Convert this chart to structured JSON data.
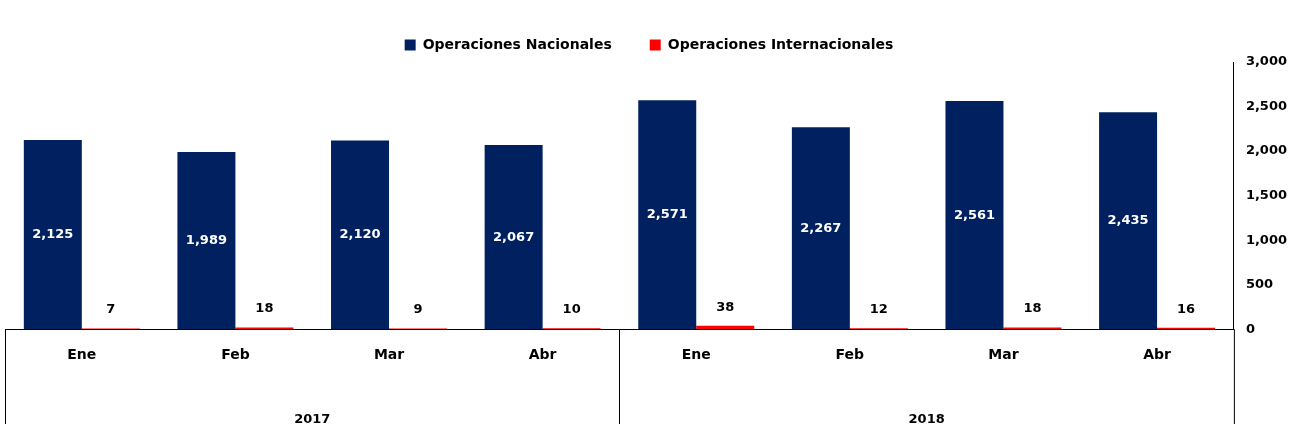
{
  "chart_data": {
    "type": "bar",
    "categories": [
      "Ene",
      "Feb",
      "Mar",
      "Abr",
      "Ene",
      "Feb",
      "Mar",
      "Abr"
    ],
    "series": [
      {
        "name": "Operaciones Nacionales",
        "color": "#002060",
        "values": [
          2125,
          1989,
          2120,
          2067,
          2571,
          2267,
          2561,
          2435
        ],
        "value_labels": [
          "2,125",
          "1,989",
          "2,120",
          "2,067",
          "2,571",
          "2,267",
          "2,561",
          "2,435"
        ]
      },
      {
        "name": "Operaciones Internacionales",
        "color": "#ff0000",
        "values": [
          7,
          18,
          9,
          10,
          38,
          12,
          18,
          16
        ],
        "value_labels": [
          "7",
          "18",
          "9",
          "10",
          "38",
          "12",
          "18",
          "16"
        ]
      }
    ],
    "annotations": [
      "2017",
      "2018"
    ],
    "ylim": [
      0,
      3000
    ],
    "yticks": [
      0,
      500,
      {
        "value": 1000,
        "label": "1,000"
      },
      {
        "value": 1500,
        "label": "1,500"
      },
      {
        "value": 2000,
        "label": "2,000"
      },
      {
        "value": 2500,
        "label": "2,500"
      },
      {
        "value": 3000,
        "label": "3,000"
      }
    ],
    "grid": false,
    "legend": "top"
  }
}
